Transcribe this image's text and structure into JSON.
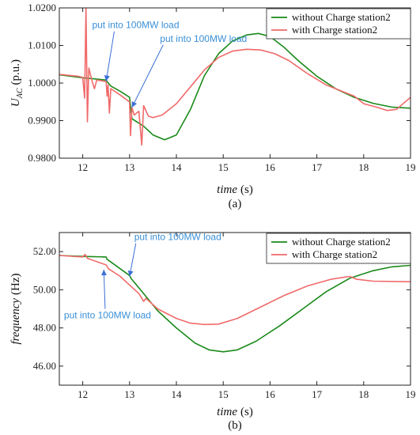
{
  "chart_data": [
    {
      "type": "line",
      "caption": "(a)",
      "xlabel": "time",
      "xunit": "(s)",
      "ylabel_main": "U",
      "ylabel_sub": "AC",
      "ylabel_unit": "(p.u.)",
      "xlim": [
        11.5,
        19
      ],
      "ylim": [
        0.98,
        1.02
      ],
      "xticks": [
        "12",
        "13",
        "14",
        "15",
        "16",
        "17",
        "18",
        "19"
      ],
      "yticks": [
        "0.9800",
        "0.9900",
        "1.0000",
        "1.0100",
        "1.0200"
      ],
      "ytick_values": [
        0.98,
        0.99,
        1.0,
        1.01,
        1.02
      ],
      "xtick_values": [
        12,
        13,
        14,
        15,
        16,
        17,
        18,
        19
      ],
      "legend_position": "top-right",
      "grid": false,
      "series": [
        {
          "name": "without Charge station2",
          "color": "#1a8a1a",
          "points": [
            [
              11.5,
              1.0022
            ],
            [
              12.0,
              1.0014
            ],
            [
              12.5,
              1.0008
            ],
            [
              12.52,
              1.0004
            ],
            [
              12.6,
              0.9992
            ],
            [
              12.8,
              0.9978
            ],
            [
              13.0,
              0.9962
            ],
            [
              13.05,
              0.9905
            ],
            [
              13.3,
              0.9885
            ],
            [
              13.5,
              0.9862
            ],
            [
              13.75,
              0.9849
            ],
            [
              14.0,
              0.9862
            ],
            [
              14.3,
              0.993
            ],
            [
              14.6,
              1.002
            ],
            [
              14.9,
              1.0078
            ],
            [
              15.2,
              1.0112
            ],
            [
              15.5,
              1.0128
            ],
            [
              15.75,
              1.0132
            ],
            [
              16.0,
              1.0124
            ],
            [
              16.3,
              1.0095
            ],
            [
              16.6,
              1.006
            ],
            [
              17.0,
              1.0018
            ],
            [
              17.4,
              0.9985
            ],
            [
              17.8,
              0.9962
            ],
            [
              18.2,
              0.9946
            ],
            [
              18.6,
              0.9936
            ],
            [
              19.0,
              0.9933
            ]
          ]
        },
        {
          "name": "with Charge station2",
          "color": "#f06a6a",
          "points": [
            [
              11.5,
              1.0023
            ],
            [
              11.9,
              1.0018
            ],
            [
              12.0,
              1.0015
            ],
            [
              12.04,
              0.996
            ],
            [
              12.07,
              1.02
            ],
            [
              12.1,
              0.9897
            ],
            [
              12.13,
              1.004
            ],
            [
              12.2,
              1.0005
            ],
            [
              12.25,
              0.9985
            ],
            [
              12.3,
              1.0008
            ],
            [
              12.5,
              1.0004
            ],
            [
              12.52,
              0.9965
            ],
            [
              12.54,
              0.9995
            ],
            [
              12.57,
              0.992
            ],
            [
              12.6,
              0.9985
            ],
            [
              12.8,
              0.9968
            ],
            [
              13.0,
              0.995
            ],
            [
              13.02,
              0.986
            ],
            [
              13.05,
              0.9935
            ],
            [
              13.1,
              0.9915
            ],
            [
              13.2,
              0.9925
            ],
            [
              13.26,
              0.9835
            ],
            [
              13.3,
              0.994
            ],
            [
              13.4,
              0.9912
            ],
            [
              13.5,
              0.9908
            ],
            [
              13.7,
              0.9915
            ],
            [
              14.0,
              0.9945
            ],
            [
              14.3,
              0.999
            ],
            [
              14.6,
              1.0035
            ],
            [
              14.9,
              1.0068
            ],
            [
              15.2,
              1.0085
            ],
            [
              15.5,
              1.009
            ],
            [
              15.8,
              1.0088
            ],
            [
              16.1,
              1.0078
            ],
            [
              16.4,
              1.006
            ],
            [
              16.8,
              1.0025
            ],
            [
              17.2,
              0.9995
            ],
            [
              17.6,
              0.9975
            ],
            [
              17.8,
              0.9965
            ],
            [
              18.0,
              0.9945
            ],
            [
              18.3,
              0.9935
            ],
            [
              18.5,
              0.9927
            ],
            [
              18.7,
              0.993
            ],
            [
              19.0,
              0.9962
            ]
          ]
        }
      ],
      "annotations": [
        {
          "text": "put into 100MW load",
          "x": 12.2,
          "y": 1.0146,
          "arrow_to": [
            12.5,
            1.0005
          ]
        },
        {
          "text": "put into 100MW load",
          "x": 13.65,
          "y": 1.011,
          "arrow_to": [
            13.05,
            0.9935
          ]
        }
      ]
    },
    {
      "type": "line",
      "caption": "(b)",
      "xlabel": "time",
      "xunit": "(s)",
      "ylabel_main": "frequency",
      "ylabel_unit": "(Hz)",
      "xlim": [
        11.5,
        19
      ],
      "ylim": [
        45,
        53
      ],
      "xticks": [
        "12",
        "13",
        "14",
        "15",
        "16",
        "17",
        "18",
        "19"
      ],
      "yticks": [
        "46.00",
        "48.00",
        "50.00",
        "52.00"
      ],
      "ytick_values": [
        46,
        48,
        50,
        52
      ],
      "xtick_values": [
        12,
        13,
        14,
        15,
        16,
        17,
        18,
        19
      ],
      "legend_position": "top-right",
      "grid": false,
      "series": [
        {
          "name": "without Charge station2",
          "color": "#1a8a1a",
          "points": [
            [
              11.5,
              51.8
            ],
            [
              12.0,
              51.75
            ],
            [
              12.5,
              51.72
            ],
            [
              12.52,
              51.6
            ],
            [
              12.8,
              51.1
            ],
            [
              13.0,
              50.75
            ],
            [
              13.03,
              50.6
            ],
            [
              13.3,
              49.8
            ],
            [
              13.6,
              48.9
            ],
            [
              14.0,
              48.0
            ],
            [
              14.4,
              47.2
            ],
            [
              14.7,
              46.85
            ],
            [
              15.0,
              46.75
            ],
            [
              15.3,
              46.85
            ],
            [
              15.7,
              47.3
            ],
            [
              16.2,
              48.1
            ],
            [
              16.7,
              49.0
            ],
            [
              17.2,
              49.9
            ],
            [
              17.7,
              50.6
            ],
            [
              18.2,
              51.0
            ],
            [
              18.6,
              51.2
            ],
            [
              19.0,
              51.28
            ]
          ]
        },
        {
          "name": "with Charge station2",
          "color": "#f06a6a",
          "points": [
            [
              11.5,
              51.8
            ],
            [
              12.0,
              51.72
            ],
            [
              12.05,
              51.85
            ],
            [
              12.1,
              51.65
            ],
            [
              12.5,
              51.3
            ],
            [
              12.55,
              51.1
            ],
            [
              12.8,
              50.7
            ],
            [
              13.0,
              50.25
            ],
            [
              13.2,
              49.8
            ],
            [
              13.3,
              49.4
            ],
            [
              13.35,
              49.55
            ],
            [
              13.6,
              49.0
            ],
            [
              14.0,
              48.5
            ],
            [
              14.3,
              48.25
            ],
            [
              14.6,
              48.18
            ],
            [
              14.9,
              48.2
            ],
            [
              15.3,
              48.5
            ],
            [
              15.8,
              49.1
            ],
            [
              16.3,
              49.7
            ],
            [
              16.8,
              50.2
            ],
            [
              17.3,
              50.55
            ],
            [
              17.7,
              50.7
            ],
            [
              17.85,
              50.55
            ],
            [
              18.2,
              50.45
            ],
            [
              19.0,
              50.42
            ]
          ]
        }
      ],
      "annotations": [
        {
          "text": "put into 100MW load",
          "x": 13.1,
          "y": 52.6,
          "arrow_to": [
            13.0,
            50.7
          ]
        },
        {
          "text": "put into 100MW load",
          "x": 11.6,
          "y": 48.5,
          "arrow_to": [
            12.45,
            51.05
          ]
        }
      ]
    }
  ]
}
